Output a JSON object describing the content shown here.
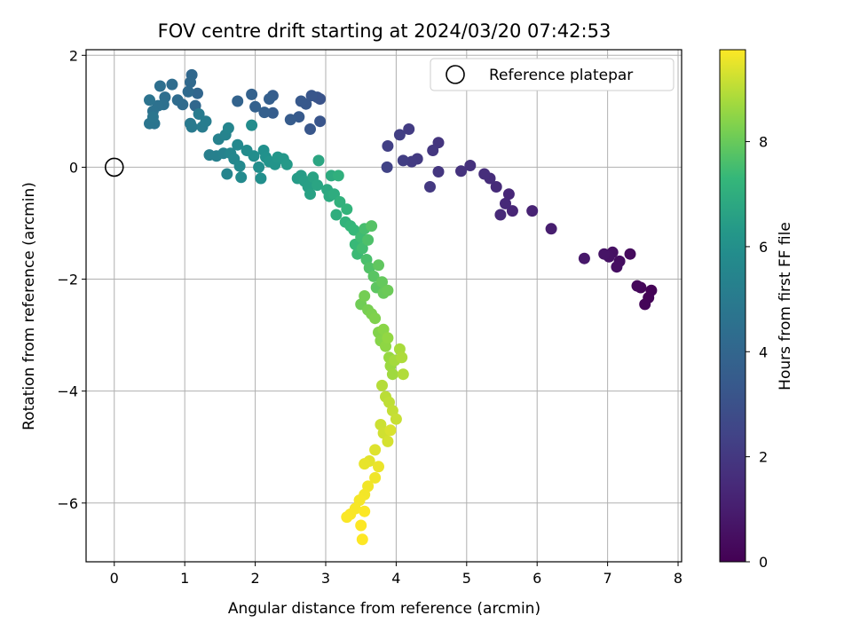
{
  "chart_data": {
    "type": "scatter",
    "title": "FOV centre drift starting at 2024/03/20 07:42:53",
    "xlabel": "Angular distance from reference (arcmin)",
    "ylabel": "Rotation from reference (arcmin)",
    "colorbar_label": "Hours from first FF file",
    "xlim": [
      -0.4,
      8.05
    ],
    "ylim": [
      -7.05,
      2.1
    ],
    "x_ticks": [
      0,
      1,
      2,
      3,
      4,
      5,
      6,
      7,
      8
    ],
    "y_ticks": [
      2,
      0,
      -2,
      -4,
      -6
    ],
    "y_tick_labels": [
      "2",
      "0",
      "−2",
      "−4",
      "−6"
    ],
    "colorbar_range": [
      0,
      9.75
    ],
    "colorbar_ticks": [
      0,
      2,
      4,
      6,
      8
    ],
    "colormap": "viridis",
    "grid": true,
    "legend": {
      "label": "Reference platepar",
      "position": "top-right"
    },
    "reference": {
      "x": 0,
      "y": 0
    },
    "points": [
      [
        7.62,
        -2.2,
        0.08
      ],
      [
        7.58,
        -2.33,
        0.12
      ],
      [
        7.53,
        -2.45,
        0.15
      ],
      [
        7.47,
        -2.15,
        0.2
      ],
      [
        7.42,
        -2.12,
        0.25
      ],
      [
        7.32,
        -1.55,
        0.35
      ],
      [
        7.17,
        -1.68,
        0.45
      ],
      [
        7.13,
        -1.78,
        0.5
      ],
      [
        7.07,
        -1.52,
        0.55
      ],
      [
        7.02,
        -1.6,
        0.6
      ],
      [
        6.95,
        -1.55,
        0.65
      ],
      [
        6.67,
        -1.63,
        0.8
      ],
      [
        6.2,
        -1.1,
        1.0
      ],
      [
        5.93,
        -0.78,
        1.2
      ],
      [
        5.65,
        -0.78,
        1.3
      ],
      [
        5.6,
        -0.48,
        1.35
      ],
      [
        5.55,
        -0.65,
        1.4
      ],
      [
        5.48,
        -0.85,
        1.45
      ],
      [
        5.42,
        -0.35,
        1.5
      ],
      [
        5.33,
        -0.2,
        1.55
      ],
      [
        5.25,
        -0.12,
        1.6
      ],
      [
        5.05,
        0.03,
        1.7
      ],
      [
        4.92,
        -0.07,
        1.75
      ],
      [
        4.6,
        0.44,
        1.85
      ],
      [
        4.6,
        -0.08,
        1.9
      ],
      [
        4.52,
        0.3,
        1.95
      ],
      [
        4.48,
        -0.35,
        2.0
      ],
      [
        4.3,
        0.15,
        2.05
      ],
      [
        4.22,
        0.1,
        2.1
      ],
      [
        4.18,
        0.68,
        2.15
      ],
      [
        4.1,
        0.12,
        2.2
      ],
      [
        4.05,
        0.58,
        2.25
      ],
      [
        3.88,
        0.38,
        2.3
      ],
      [
        3.87,
        0.0,
        2.4
      ],
      [
        2.92,
        1.22,
        3.1
      ],
      [
        2.88,
        1.25,
        3.15
      ],
      [
        2.92,
        0.82,
        3.2
      ],
      [
        2.8,
        1.28,
        3.25
      ],
      [
        2.78,
        0.68,
        3.3
      ],
      [
        2.72,
        1.13,
        3.35
      ],
      [
        2.65,
        1.18,
        3.4
      ],
      [
        2.62,
        0.9,
        3.45
      ],
      [
        2.5,
        0.85,
        3.5
      ],
      [
        2.25,
        0.97,
        3.55
      ],
      [
        2.25,
        1.28,
        3.6
      ],
      [
        2.2,
        1.22,
        3.65
      ],
      [
        2.13,
        0.98,
        3.7
      ],
      [
        2.0,
        1.08,
        3.75
      ],
      [
        1.95,
        1.3,
        3.8
      ],
      [
        1.75,
        1.18,
        3.85
      ],
      [
        1.18,
        1.32,
        4.0
      ],
      [
        1.15,
        1.1,
        4.05
      ],
      [
        1.1,
        1.65,
        4.1
      ],
      [
        1.08,
        1.52,
        4.15
      ],
      [
        1.05,
        1.35,
        4.2
      ],
      [
        0.97,
        1.12,
        4.25
      ],
      [
        0.9,
        1.2,
        4.3
      ],
      [
        0.82,
        1.48,
        4.35
      ],
      [
        0.72,
        1.25,
        4.4
      ],
      [
        0.65,
        1.45,
        4.45
      ],
      [
        0.7,
        1.12,
        4.5
      ],
      [
        0.62,
        1.1,
        4.55
      ],
      [
        0.55,
        1.0,
        4.6
      ],
      [
        0.5,
        1.2,
        4.65
      ],
      [
        0.57,
        0.78,
        4.7
      ],
      [
        0.5,
        0.78,
        4.75
      ],
      [
        0.55,
        0.9,
        4.8
      ],
      [
        1.08,
        0.78,
        4.9
      ],
      [
        1.1,
        0.72,
        4.95
      ],
      [
        1.2,
        0.95,
        5.0
      ],
      [
        1.25,
        0.72,
        5.05
      ],
      [
        1.3,
        0.82,
        5.1
      ],
      [
        1.35,
        0.22,
        5.2
      ],
      [
        1.45,
        0.2,
        5.25
      ],
      [
        1.48,
        0.5,
        5.3
      ],
      [
        1.55,
        0.25,
        5.35
      ],
      [
        1.58,
        0.58,
        5.4
      ],
      [
        1.6,
        -0.12,
        5.45
      ],
      [
        1.62,
        0.7,
        5.5
      ],
      [
        1.65,
        0.25,
        5.55
      ],
      [
        1.7,
        0.15,
        5.6
      ],
      [
        1.75,
        0.4,
        5.65
      ],
      [
        1.78,
        0.02,
        5.7
      ],
      [
        1.8,
        -0.18,
        5.75
      ],
      [
        1.88,
        0.3,
        5.8
      ],
      [
        1.95,
        0.75,
        5.85
      ],
      [
        1.98,
        0.2,
        5.9
      ],
      [
        2.05,
        0.0,
        5.95
      ],
      [
        2.08,
        -0.2,
        6.0
      ],
      [
        2.12,
        0.3,
        6.05
      ],
      [
        2.15,
        0.18,
        6.1
      ],
      [
        2.2,
        0.1,
        6.15
      ],
      [
        2.28,
        0.05,
        6.2
      ],
      [
        2.32,
        0.18,
        6.25
      ],
      [
        2.4,
        0.15,
        6.3
      ],
      [
        2.45,
        0.05,
        6.35
      ],
      [
        2.6,
        -0.2,
        6.4
      ],
      [
        2.65,
        -0.15,
        6.45
      ],
      [
        2.7,
        -0.25,
        6.5
      ],
      [
        2.75,
        -0.35,
        6.55
      ],
      [
        2.78,
        -0.48,
        6.6
      ],
      [
        2.82,
        -0.18,
        6.65
      ],
      [
        2.88,
        -0.32,
        6.7
      ],
      [
        2.9,
        0.12,
        6.75
      ],
      [
        3.02,
        -0.4,
        6.8
      ],
      [
        3.05,
        -0.52,
        6.85
      ],
      [
        3.08,
        -0.15,
        6.9
      ],
      [
        3.12,
        -0.48,
        6.95
      ],
      [
        3.15,
        -0.85,
        7.0
      ],
      [
        3.18,
        -0.15,
        7.05
      ],
      [
        3.2,
        -0.62,
        7.1
      ],
      [
        3.28,
        -0.98,
        7.15
      ],
      [
        3.3,
        -0.75,
        7.2
      ],
      [
        3.35,
        -1.05,
        7.25
      ],
      [
        3.4,
        -1.12,
        7.3
      ],
      [
        3.42,
        -1.38,
        7.35
      ],
      [
        3.45,
        -1.55,
        7.4
      ],
      [
        3.5,
        -1.25,
        7.45
      ],
      [
        3.52,
        -1.45,
        7.5
      ],
      [
        3.55,
        -1.1,
        7.55
      ],
      [
        3.58,
        -1.65,
        7.6
      ],
      [
        3.6,
        -1.3,
        7.65
      ],
      [
        3.62,
        -1.8,
        7.7
      ],
      [
        3.65,
        -1.05,
        7.75
      ],
      [
        3.68,
        -1.95,
        7.8
      ],
      [
        3.72,
        -2.15,
        7.85
      ],
      [
        3.75,
        -1.75,
        7.9
      ],
      [
        3.8,
        -2.05,
        7.95
      ],
      [
        3.82,
        -2.25,
        8.0
      ],
      [
        3.88,
        -2.2,
        8.05
      ],
      [
        3.5,
        -2.45,
        8.1
      ],
      [
        3.55,
        -2.3,
        8.15
      ],
      [
        3.6,
        -2.55,
        8.2
      ],
      [
        3.65,
        -2.62,
        8.25
      ],
      [
        3.7,
        -2.7,
        8.3
      ],
      [
        3.75,
        -2.95,
        8.35
      ],
      [
        3.78,
        -3.1,
        8.4
      ],
      [
        3.82,
        -2.9,
        8.45
      ],
      [
        3.85,
        -3.2,
        8.5
      ],
      [
        3.88,
        -3.05,
        8.55
      ],
      [
        3.9,
        -3.4,
        8.6
      ],
      [
        3.92,
        -3.55,
        8.65
      ],
      [
        3.95,
        -3.7,
        8.7
      ],
      [
        3.98,
        -3.45,
        8.75
      ],
      [
        4.05,
        -3.25,
        8.8
      ],
      [
        4.08,
        -3.4,
        8.85
      ],
      [
        4.1,
        -3.7,
        8.9
      ],
      [
        3.8,
        -3.9,
        8.95
      ],
      [
        3.85,
        -4.1,
        9.0
      ],
      [
        3.9,
        -4.2,
        9.05
      ],
      [
        3.95,
        -4.35,
        9.1
      ],
      [
        4.0,
        -4.5,
        9.15
      ],
      [
        3.78,
        -4.6,
        9.2
      ],
      [
        3.82,
        -4.75,
        9.25
      ],
      [
        3.88,
        -4.9,
        9.3
      ],
      [
        3.92,
        -4.7,
        9.35
      ],
      [
        3.7,
        -5.05,
        9.4
      ],
      [
        3.62,
        -5.25,
        9.45
      ],
      [
        3.55,
        -5.3,
        9.5
      ],
      [
        3.75,
        -5.35,
        9.55
      ],
      [
        3.7,
        -5.55,
        9.6
      ],
      [
        3.6,
        -5.7,
        9.62
      ],
      [
        3.55,
        -5.85,
        9.64
      ],
      [
        3.48,
        -5.95,
        9.66
      ],
      [
        3.42,
        -6.1,
        9.68
      ],
      [
        3.35,
        -6.2,
        9.7
      ],
      [
        3.3,
        -6.25,
        9.72
      ],
      [
        3.55,
        -6.15,
        9.73
      ],
      [
        3.5,
        -6.4,
        9.74
      ],
      [
        3.52,
        -6.65,
        9.75
      ]
    ]
  }
}
